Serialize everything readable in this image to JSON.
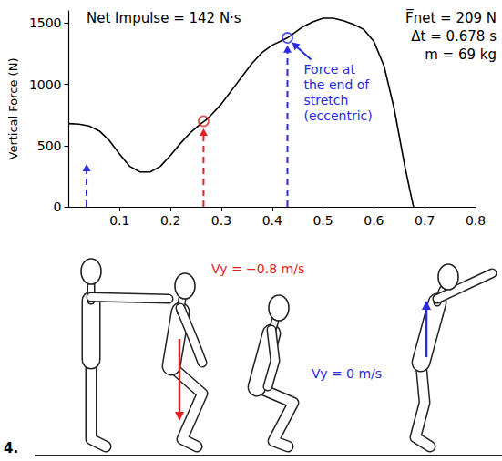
{
  "chart_data": {
    "type": "line",
    "ylabel": "Vertical Force (N)",
    "x": [
      0,
      0.02,
      0.04,
      0.06,
      0.08,
      0.1,
      0.12,
      0.14,
      0.16,
      0.18,
      0.2,
      0.22,
      0.24,
      0.26,
      0.27,
      0.28,
      0.3,
      0.32,
      0.34,
      0.36,
      0.38,
      0.4,
      0.42,
      0.43,
      0.44,
      0.46,
      0.48,
      0.5,
      0.52,
      0.54,
      0.56,
      0.58,
      0.6,
      0.62,
      0.64,
      0.66,
      0.67,
      0.678
    ],
    "values": [
      680,
      675,
      660,
      620,
      540,
      430,
      330,
      285,
      285,
      330,
      420,
      520,
      610,
      680,
      710,
      750,
      840,
      950,
      1060,
      1170,
      1260,
      1320,
      1360,
      1380,
      1410,
      1470,
      1510,
      1540,
      1540,
      1520,
      1490,
      1450,
      1350,
      1150,
      800,
      350,
      150,
      0
    ],
    "color": "#000000",
    "xlim": [
      0,
      0.8
    ],
    "xticks": [
      0.1,
      0.2,
      0.3,
      0.4,
      0.5,
      0.6,
      0.7,
      0.8
    ],
    "ylim": [
      0,
      1600
    ],
    "yticks": [
      0,
      500,
      1000,
      1500
    ],
    "grid": false,
    "annotations": [
      "Net Impulse = 142 N·s",
      "F̅net = 209 N",
      "Δt = 0.678 s",
      "m = 69 kg"
    ],
    "markers": [
      {
        "x": 0.265,
        "y": 700,
        "color": "#e32222"
      },
      {
        "x": 0.43,
        "y": 1380,
        "color": "#2a2ae0"
      }
    ],
    "arrows": [
      {
        "x": 0.035,
        "y": 350,
        "color": "#2a2ae0"
      },
      {
        "x": 0.265,
        "y": 640,
        "color": "#e32222"
      },
      {
        "x": 0.43,
        "y": 1320,
        "color": "#2a2ae0"
      }
    ],
    "callout": {
      "text": "Force at the end of stretch (eccentric)",
      "color": "#2a2ae0"
    }
  },
  "figure": {
    "step": "4.",
    "labels": [
      {
        "text": "Vy = −0.8 m/s",
        "color": "#e32222"
      },
      {
        "text": "Vy = 0 m/s",
        "color": "#2a2ae0"
      }
    ]
  }
}
